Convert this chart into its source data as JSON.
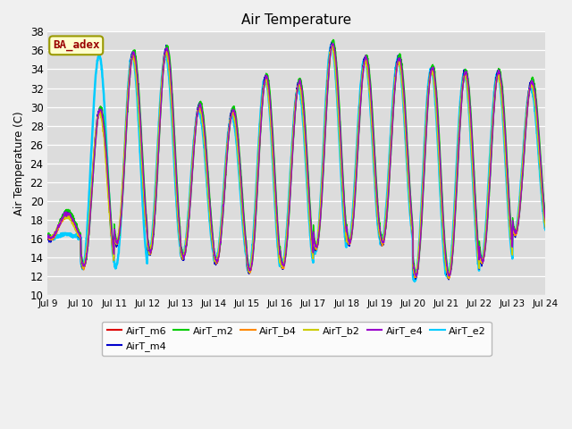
{
  "title": "Air Temperature",
  "ylabel": "Air Temperature (C)",
  "ylim": [
    10,
    38
  ],
  "yticks": [
    10,
    12,
    14,
    16,
    18,
    20,
    22,
    24,
    26,
    28,
    30,
    32,
    34,
    36,
    38
  ],
  "bg_color": "#dcdcdc",
  "fig_color": "#f0f0f0",
  "series": [
    "AirT_m6",
    "AirT_m4",
    "AirT_m2",
    "AirT_b4",
    "AirT_b2",
    "AirT_e4",
    "AirT_e2"
  ],
  "colors": [
    "#dd0000",
    "#0000cc",
    "#00cc00",
    "#ff8800",
    "#cccc00",
    "#9900cc",
    "#00ccff"
  ],
  "linewidths": [
    1.0,
    1.0,
    1.0,
    1.0,
    1.0,
    1.0,
    1.8
  ],
  "legend_label": "BA_adex",
  "legend_bg": "#ffffcc",
  "legend_border": "#999900",
  "x_tick_labels": [
    "Jul 9",
    "Jul 10",
    "Jul 11",
    "Jul 12",
    "Jul 13",
    "Jul 14",
    "Jul 15",
    "Jul 16",
    "Jul 17",
    "Jul 18",
    "Jul 19",
    "Jul 20",
    "Jul 21",
    "Jul 22",
    "Jul 23",
    "Jul 24"
  ],
  "n_days": 15,
  "ppd": 144,
  "day_maxs": [
    18.5,
    29.5,
    35.5,
    36.0,
    30.0,
    29.5,
    33.0,
    32.5,
    36.5,
    35.0,
    35.0,
    34.0,
    33.5,
    33.5,
    32.5
  ],
  "day_mins": [
    16.0,
    13.0,
    15.5,
    14.5,
    14.0,
    13.5,
    12.5,
    13.0,
    15.0,
    15.5,
    15.5,
    12.0,
    12.0,
    13.5,
    16.5
  ],
  "e2_day_maxs": [
    16.5,
    35.5,
    35.5,
    35.5,
    29.5,
    29.0,
    33.0,
    32.0,
    36.5,
    35.0,
    35.0,
    34.0,
    33.5,
    33.5,
    32.0
  ],
  "e2_day_mins": [
    16.0,
    13.0,
    13.0,
    14.5,
    14.0,
    13.5,
    12.5,
    13.0,
    14.5,
    15.5,
    15.5,
    11.5,
    12.0,
    13.5,
    16.5
  ]
}
